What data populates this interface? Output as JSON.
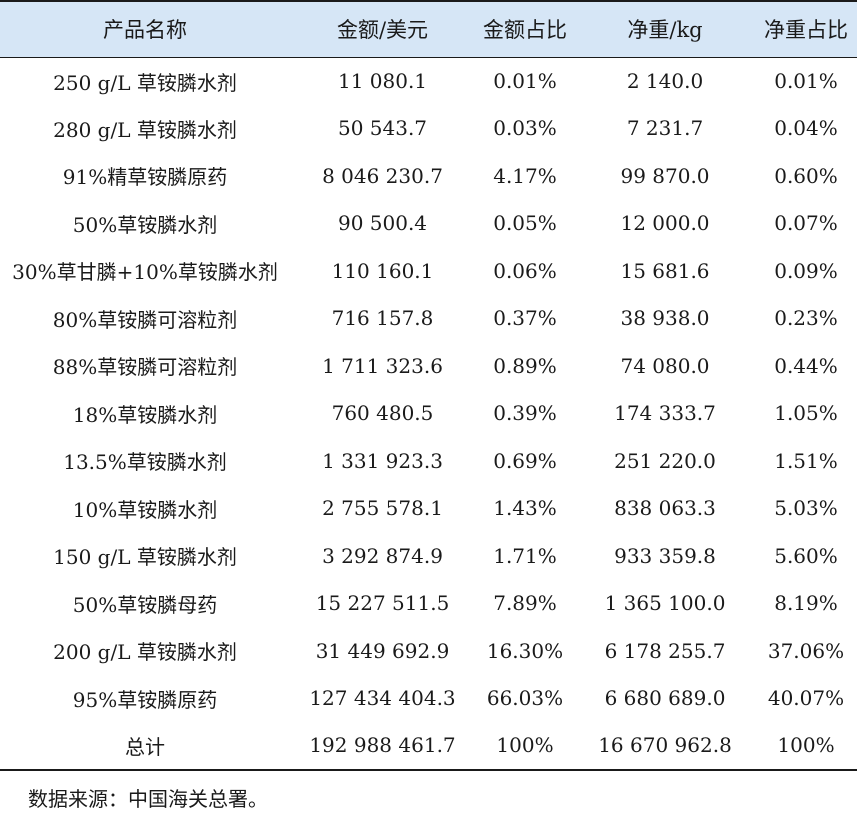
{
  "table": {
    "headers": [
      "产品名称",
      "金额/美元",
      "金额占比",
      "净重/kg",
      "净重占比"
    ],
    "rows": [
      [
        "250 g/L 草铵膦水剂",
        "11 080.1",
        "0.01%",
        "2 140.0",
        "0.01%"
      ],
      [
        "280 g/L 草铵膦水剂",
        "50 543.7",
        "0.03%",
        "7 231.7",
        "0.04%"
      ],
      [
        "91%精草铵膦原药",
        "8 046 230.7",
        "4.17%",
        "99 870.0",
        "0.60%"
      ],
      [
        "50%草铵膦水剂",
        "90 500.4",
        "0.05%",
        "12 000.0",
        "0.07%"
      ],
      [
        "30%草甘膦+10%草铵膦水剂",
        "110 160.1",
        "0.06%",
        "15 681.6",
        "0.09%"
      ],
      [
        "80%草铵膦可溶粒剂",
        "716 157.8",
        "0.37%",
        "38 938.0",
        "0.23%"
      ],
      [
        "88%草铵膦可溶粒剂",
        "1 711 323.6",
        "0.89%",
        "74 080.0",
        "0.44%"
      ],
      [
        "18%草铵膦水剂",
        "760 480.5",
        "0.39%",
        "174 333.7",
        "1.05%"
      ],
      [
        "13.5%草铵膦水剂",
        "1 331 923.3",
        "0.69%",
        "251 220.0",
        "1.51%"
      ],
      [
        "10%草铵膦水剂",
        "2 755 578.1",
        "1.43%",
        "838 063.3",
        "5.03%"
      ],
      [
        "150 g/L 草铵膦水剂",
        "3 292 874.9",
        "1.71%",
        "933 359.8",
        "5.60%"
      ],
      [
        "50%草铵膦母药",
        "15 227 511.5",
        "7.89%",
        "1 365 100.0",
        "8.19%"
      ],
      [
        "200 g/L 草铵膦水剂",
        "31 449 692.9",
        "16.30%",
        "6 178 255.7",
        "37.06%"
      ],
      [
        "95%草铵膦原药",
        "127 434 404.3",
        "66.03%",
        "6 680 689.0",
        "40.07%"
      ],
      [
        "总计",
        "192 988 461.7",
        "100%",
        "16 670 962.8",
        "100%"
      ]
    ]
  },
  "source_note": "数据来源：中国海关总署。",
  "colors": {
    "header_background": "#d6e6f6",
    "rule": "#1a1a1a"
  }
}
